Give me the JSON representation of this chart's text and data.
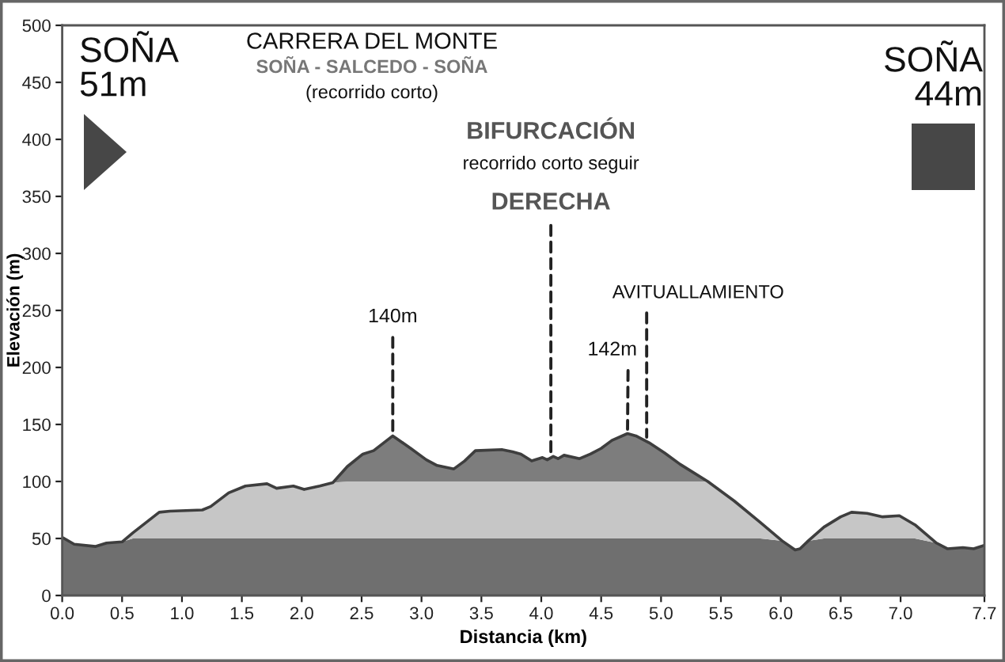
{
  "chart_data": {
    "type": "area",
    "stacked": true,
    "title": "CARRERA DEL MONTE",
    "subtitle": "SOÑA - SALCEDO - SOÑA",
    "xlabel": "Distancia (km)",
    "ylabel": "Elevación (m)",
    "annotations": [
      "SOÑA\n51m",
      "SOÑA\n44m",
      "(recorrido corto)",
      {
        "text": "BIFURCACIÓN\nrecorrido corto seguir\nDERECHA",
        "x": 4.08,
        "y": 121
      },
      {
        "text": "140m",
        "x": 2.76,
        "y": 140
      },
      {
        "text": "142m",
        "x": 4.72,
        "y": 142
      },
      {
        "text": "AVITUALLAMIENTO",
        "x": 4.88,
        "y": 135
      }
    ],
    "x": [
      0,
      0.1,
      0.28,
      0.37,
      0.5,
      0.59,
      0.81,
      0.9,
      1.17,
      1.24,
      1.39,
      1.53,
      1.71,
      1.79,
      1.93,
      2.02,
      2.15,
      2.26,
      2.38,
      2.51,
      2.6,
      2.76,
      2.91,
      3.04,
      3.13,
      3.27,
      3.36,
      3.45,
      3.67,
      3.76,
      3.83,
      3.92,
      4.01,
      4.05,
      4.1,
      4.14,
      4.19,
      4.32,
      4.41,
      4.5,
      4.59,
      4.72,
      4.79,
      4.9,
      5.03,
      5.16,
      5.39,
      5.61,
      5.83,
      6.01,
      6.12,
      6.16,
      6.23,
      6.36,
      6.5,
      6.59,
      6.72,
      6.85,
      6.99,
      7.12,
      7.3,
      7.39,
      7.52,
      7.61,
      7.7
    ],
    "series": [
      {
        "color": "#6f6f6f",
        "values": [
          50,
          45,
          43,
          46,
          47,
          50,
          50,
          50,
          50,
          50,
          50,
          50,
          50,
          50,
          50,
          50,
          50,
          50,
          50,
          50,
          50,
          50,
          50,
          50,
          50,
          50,
          50,
          50,
          50,
          50,
          50,
          50,
          50,
          50,
          50,
          50,
          50,
          50,
          50,
          50,
          50,
          50,
          50,
          50,
          50,
          50,
          50,
          50,
          50,
          48,
          40,
          41,
          48,
          50,
          50,
          50,
          50,
          50,
          50,
          50,
          46,
          41,
          42,
          41,
          44
        ]
      },
      {
        "color": "#c6c6c6",
        "values": [
          1,
          0,
          0,
          0,
          0,
          5,
          23,
          24,
          25,
          28,
          40,
          46,
          48,
          44,
          46,
          43,
          46,
          49,
          50,
          50,
          50,
          50,
          50,
          50,
          50,
          50,
          50,
          50,
          50,
          50,
          50,
          50,
          50,
          50,
          50,
          50,
          50,
          50,
          50,
          50,
          50,
          50,
          50,
          50,
          50,
          50,
          50,
          33,
          14,
          0,
          0,
          0,
          0,
          10,
          19,
          23,
          22,
          19,
          20,
          12,
          0,
          0,
          0,
          0,
          0
        ]
      },
      {
        "color": "#7d7d7d",
        "values": [
          0,
          0,
          0,
          0,
          0,
          0,
          0,
          0,
          0,
          0,
          0,
          0,
          0,
          0,
          0,
          0,
          0,
          0,
          13,
          24,
          27,
          40,
          29,
          19,
          14,
          11,
          18,
          27,
          28,
          26,
          24,
          18,
          21,
          19,
          22,
          20,
          23,
          20,
          24,
          29,
          36,
          42,
          40,
          34,
          25,
          15,
          0,
          0,
          0,
          0,
          0,
          0,
          0,
          0,
          0,
          0,
          0,
          0,
          0,
          0,
          0,
          0,
          0,
          0,
          0
        ]
      }
    ],
    "xlim": [
      0,
      7.7
    ],
    "xticks": [
      {
        "value": 0,
        "label": "0.0"
      },
      0.5,
      {
        "value": 1,
        "label": "1.0"
      },
      1.5,
      {
        "value": 2,
        "label": "2.0"
      },
      2.5,
      {
        "value": 3,
        "label": "3.0"
      },
      3.5,
      {
        "value": 4,
        "label": "4.0"
      },
      4.5,
      {
        "value": 5,
        "label": "5.0"
      },
      5.5,
      {
        "value": 6,
        "label": "6.0"
      },
      6.5,
      {
        "value": 7,
        "label": "7.0"
      },
      7.7
    ],
    "ylim": [
      0,
      500
    ],
    "yticks": [
      0,
      50,
      100,
      150,
      200,
      250,
      300,
      350,
      400,
      450,
      500
    ],
    "line_style": "solid"
  }
}
